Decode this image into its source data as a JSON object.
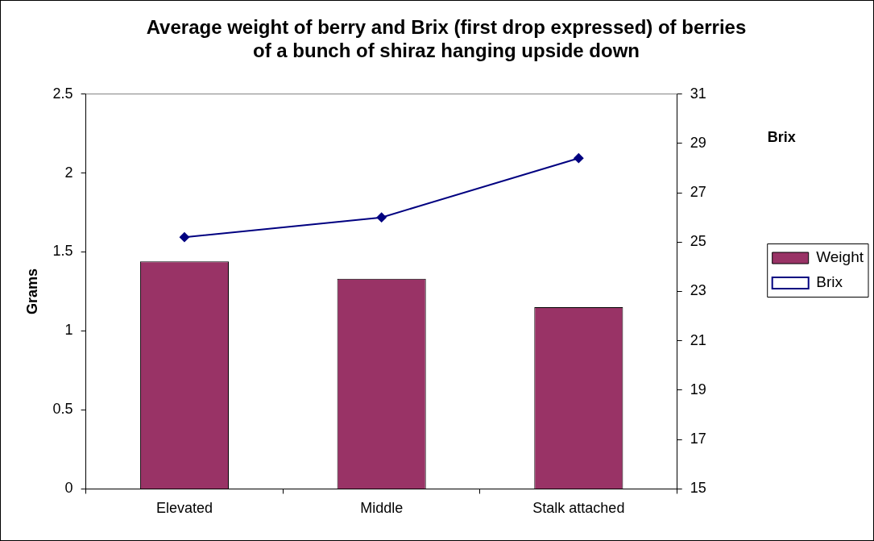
{
  "chart_data": {
    "type": "bar",
    "title": "Average weight of berry and Brix (first drop expressed) of berries of a bunch of shiraz hanging upside down",
    "ylabel": "Grams",
    "y2label": "Brix",
    "categories": [
      "Elevated",
      "Middle",
      "Stalk attached"
    ],
    "series": [
      {
        "name": "Weight",
        "color": "#993366",
        "values": [
          1.44,
          1.33,
          1.15
        ]
      },
      {
        "name": "Brix",
        "type": "line",
        "axis": "y2",
        "color": "#000080",
        "values": [
          25.2,
          26.0,
          28.4
        ],
        "marker": "diamond"
      }
    ],
    "ylim": [
      0,
      2.5
    ],
    "yticks": [
      0,
      0.5,
      1,
      1.5,
      2,
      2.5
    ],
    "y2lim": [
      15,
      31
    ],
    "y2ticks": [
      15,
      17,
      19,
      21,
      23,
      25,
      27,
      29,
      31
    ],
    "grid": false,
    "legend": "right"
  }
}
